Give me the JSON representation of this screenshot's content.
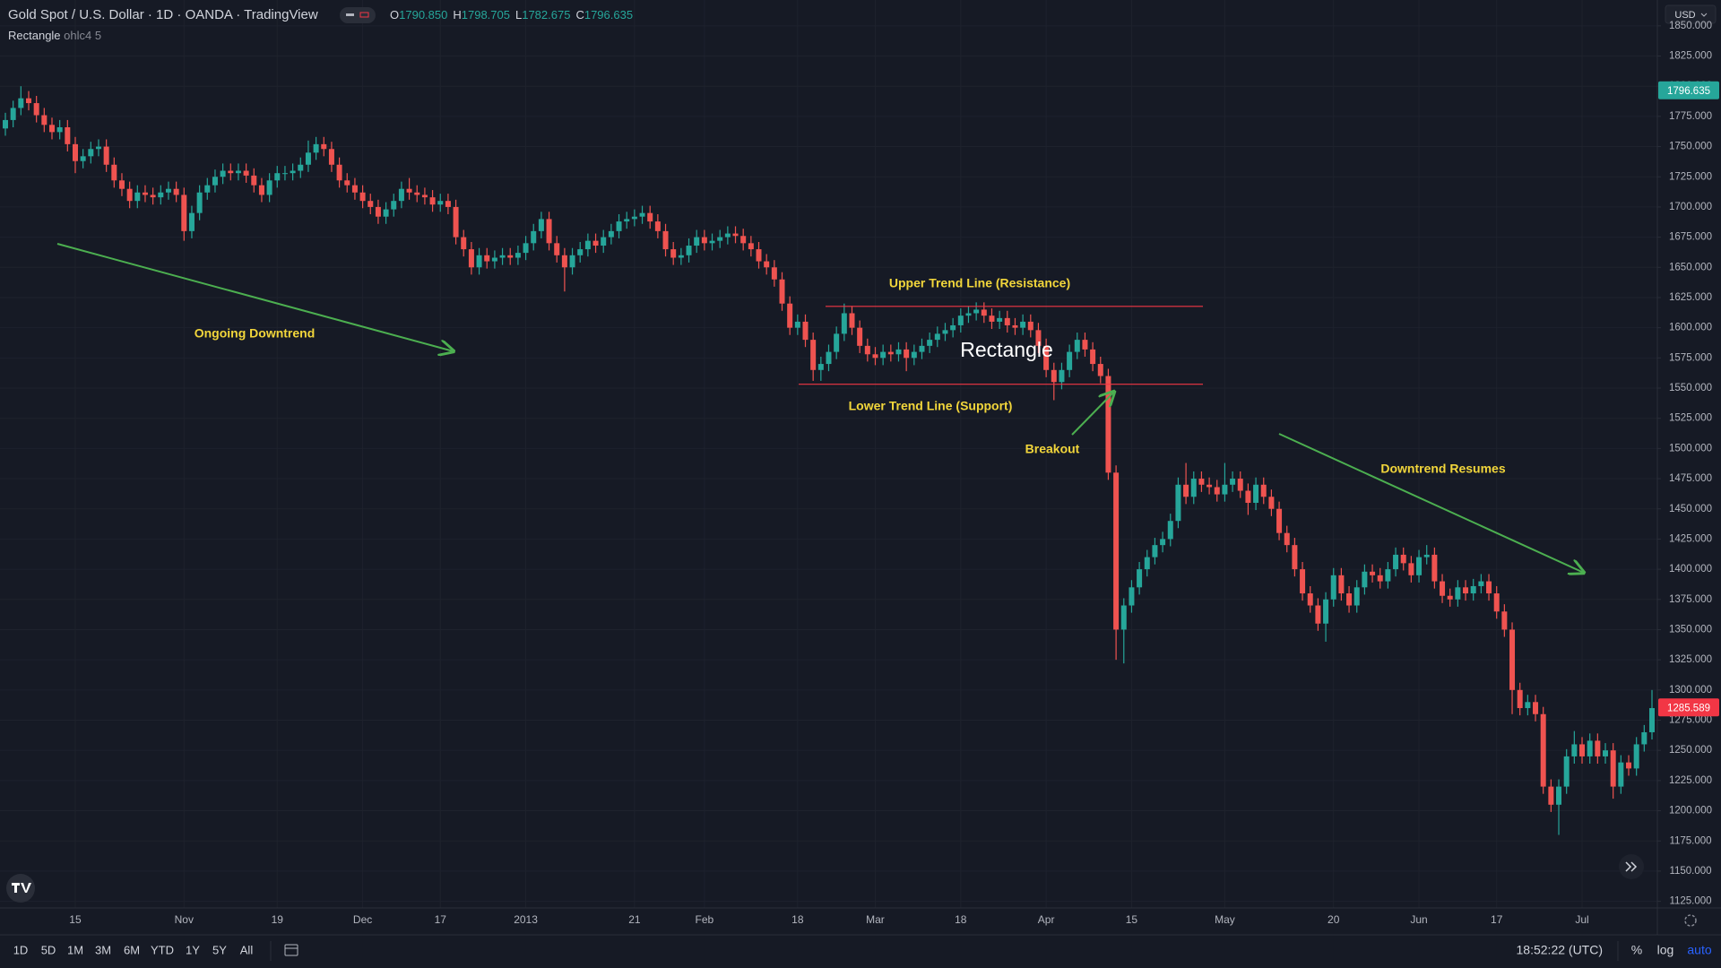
{
  "header": {
    "title": "Gold Spot / U.S. Dollar · 1D · OANDA · TradingView",
    "ohlc": [
      {
        "key": "O",
        "value": "1790.850"
      },
      {
        "key": "H",
        "value": "1798.705"
      },
      {
        "key": "L",
        "value": "1782.675"
      },
      {
        "key": "C",
        "value": "1796.635"
      }
    ],
    "indicator": {
      "name": "Rectangle",
      "params": "ohlc4 5"
    }
  },
  "chart_data": {
    "type": "candlestick",
    "categories": [
      null,
      null,
      null,
      null,
      null,
      null,
      null,
      null,
      null,
      "15",
      null,
      null,
      null,
      null,
      null,
      null,
      null,
      null,
      null,
      null,
      null,
      null,
      null,
      "Nov",
      null,
      null,
      null,
      null,
      null,
      null,
      null,
      null,
      null,
      null,
      null,
      "19",
      null,
      null,
      null,
      null,
      null,
      null,
      null,
      null,
      null,
      null,
      "Dec",
      null,
      null,
      null,
      null,
      null,
      null,
      null,
      null,
      null,
      "17",
      null,
      null,
      null,
      null,
      null,
      null,
      null,
      null,
      null,
      null,
      "2013",
      null,
      null,
      null,
      null,
      null,
      null,
      null,
      null,
      null,
      null,
      null,
      null,
      null,
      "21",
      null,
      null,
      null,
      null,
      null,
      null,
      null,
      null,
      "Feb",
      null,
      null,
      null,
      null,
      null,
      null,
      null,
      null,
      null,
      null,
      null,
      "18",
      null,
      null,
      null,
      null,
      null,
      null,
      null,
      null,
      null,
      "Mar",
      null,
      null,
      null,
      null,
      null,
      null,
      null,
      null,
      null,
      null,
      "18",
      null,
      null,
      null,
      null,
      null,
      null,
      null,
      null,
      null,
      null,
      "Apr",
      null,
      null,
      null,
      null,
      null,
      null,
      null,
      null,
      null,
      null,
      "15",
      null,
      null,
      null,
      null,
      null,
      null,
      null,
      null,
      null,
      null,
      null,
      "May",
      null,
      null,
      null,
      null,
      null,
      null,
      null,
      null,
      null,
      null,
      null,
      null,
      null,
      "20",
      null,
      null,
      null,
      null,
      null,
      null,
      null,
      null,
      null,
      null,
      "Jun",
      null,
      null,
      null,
      null,
      null,
      null,
      null,
      null,
      null,
      "17",
      null,
      null,
      null,
      null,
      null,
      null,
      null,
      null,
      null,
      null,
      "Jul",
      null,
      null,
      null,
      null,
      null,
      null,
      null,
      null,
      null
    ],
    "open": [
      1765,
      1772,
      1782,
      1790,
      1786,
      1776,
      1768,
      1762,
      1766,
      1752,
      1738,
      1742,
      1748,
      1750,
      1735,
      1722,
      1715,
      1705,
      1712,
      1710,
      1708,
      1712,
      1715,
      1710,
      1680,
      1695,
      1712,
      1718,
      1725,
      1730,
      1728,
      1730,
      1726,
      1718,
      1710,
      1722,
      1728,
      1728,
      1730,
      1735,
      1745,
      1752,
      1748,
      1735,
      1722,
      1718,
      1712,
      1705,
      1700,
      1692,
      1698,
      1705,
      1715,
      1712,
      1710,
      1708,
      1702,
      1705,
      1700,
      1675,
      1665,
      1650,
      1660,
      1655,
      1658,
      1660,
      1658,
      1662,
      1670,
      1680,
      1690,
      1670,
      1660,
      1650,
      1660,
      1665,
      1672,
      1668,
      1675,
      1680,
      1688,
      1690,
      1692,
      1695,
      1688,
      1680,
      1665,
      1658,
      1660,
      1668,
      1675,
      1670,
      1672,
      1675,
      1678,
      1676,
      1670,
      1665,
      1655,
      1650,
      1640,
      1620,
      1600,
      1605,
      1590,
      1565,
      1570,
      1580,
      1595,
      1612,
      1600,
      1585,
      1578,
      1575,
      1580,
      1578,
      1582,
      1575,
      1580,
      1585,
      1590,
      1595,
      1598,
      1602,
      1610,
      1612,
      1615,
      1610,
      1605,
      1608,
      1602,
      1600,
      1605,
      1598,
      1585,
      1565,
      1555,
      1565,
      1580,
      1590,
      1582,
      1570,
      1560,
      1480,
      1350,
      1370,
      1385,
      1400,
      1410,
      1420,
      1425,
      1440,
      1470,
      1460,
      1475,
      1470,
      1468,
      1462,
      1470,
      1475,
      1465,
      1455,
      1470,
      1460,
      1450,
      1430,
      1420,
      1400,
      1380,
      1370,
      1355,
      1375,
      1395,
      1380,
      1370,
      1385,
      1398,
      1395,
      1390,
      1400,
      1412,
      1405,
      1395,
      1410,
      1412,
      1390,
      1378,
      1375,
      1385,
      1380,
      1386,
      1390,
      1380,
      1365,
      1350,
      1300,
      1285,
      1290,
      1280,
      1220,
      1205,
      1220,
      1245,
      1255,
      1245,
      1258,
      1245,
      1250,
      1220,
      1240,
      1235,
      1255,
      1265
    ],
    "high": [
      1778,
      1788,
      1800,
      1796,
      1792,
      1782,
      1774,
      1772,
      1772,
      1758,
      1748,
      1754,
      1756,
      1756,
      1741,
      1728,
      1721,
      1718,
      1718,
      1716,
      1718,
      1721,
      1721,
      1716,
      1701,
      1718,
      1724,
      1731,
      1736,
      1736,
      1736,
      1736,
      1732,
      1724,
      1728,
      1734,
      1734,
      1736,
      1741,
      1755,
      1758,
      1758,
      1754,
      1741,
      1728,
      1724,
      1718,
      1711,
      1706,
      1704,
      1711,
      1721,
      1724,
      1718,
      1716,
      1714,
      1711,
      1711,
      1706,
      1681,
      1671,
      1666,
      1666,
      1664,
      1666,
      1666,
      1668,
      1676,
      1686,
      1696,
      1696,
      1676,
      1666,
      1666,
      1671,
      1678,
      1678,
      1681,
      1686,
      1694,
      1696,
      1698,
      1701,
      1701,
      1694,
      1686,
      1671,
      1666,
      1674,
      1681,
      1681,
      1678,
      1681,
      1684,
      1684,
      1682,
      1676,
      1671,
      1661,
      1656,
      1646,
      1626,
      1611,
      1611,
      1596,
      1576,
      1586,
      1601,
      1620,
      1618,
      1606,
      1591,
      1584,
      1586,
      1586,
      1588,
      1588,
      1586,
      1591,
      1596,
      1601,
      1604,
      1608,
      1616,
      1618,
      1621,
      1621,
      1616,
      1614,
      1614,
      1608,
      1611,
      1611,
      1604,
      1591,
      1571,
      1571,
      1586,
      1596,
      1596,
      1588,
      1576,
      1566,
      1486,
      1376,
      1391,
      1406,
      1416,
      1426,
      1431,
      1446,
      1476,
      1488,
      1481,
      1481,
      1476,
      1474,
      1488,
      1481,
      1481,
      1471,
      1476,
      1476,
      1466,
      1456,
      1436,
      1426,
      1406,
      1386,
      1376,
      1381,
      1401,
      1401,
      1386,
      1391,
      1404,
      1404,
      1401,
      1406,
      1418,
      1418,
      1411,
      1416,
      1420,
      1418,
      1396,
      1384,
      1391,
      1391,
      1392,
      1396,
      1396,
      1386,
      1371,
      1356,
      1306,
      1296,
      1296,
      1286,
      1226,
      1226,
      1251,
      1266,
      1261,
      1264,
      1264,
      1256,
      1256,
      1246,
      1246,
      1261,
      1271,
      1300
    ],
    "low": [
      1759,
      1766,
      1776,
      1780,
      1770,
      1762,
      1756,
      1756,
      1746,
      1728,
      1732,
      1736,
      1742,
      1729,
      1716,
      1709,
      1699,
      1699,
      1704,
      1702,
      1702,
      1706,
      1704,
      1672,
      1674,
      1689,
      1706,
      1712,
      1719,
      1722,
      1722,
      1720,
      1712,
      1704,
      1704,
      1716,
      1722,
      1722,
      1724,
      1729,
      1739,
      1742,
      1729,
      1716,
      1712,
      1706,
      1699,
      1694,
      1686,
      1686,
      1692,
      1699,
      1706,
      1704,
      1702,
      1696,
      1696,
      1694,
      1669,
      1659,
      1644,
      1644,
      1649,
      1649,
      1652,
      1652,
      1652,
      1656,
      1664,
      1674,
      1664,
      1654,
      1630,
      1644,
      1654,
      1659,
      1662,
      1662,
      1669,
      1674,
      1682,
      1684,
      1686,
      1682,
      1674,
      1659,
      1652,
      1652,
      1654,
      1662,
      1664,
      1664,
      1666,
      1669,
      1670,
      1664,
      1659,
      1649,
      1644,
      1634,
      1614,
      1594,
      1594,
      1584,
      1556,
      1556,
      1564,
      1574,
      1589,
      1594,
      1579,
      1572,
      1569,
      1569,
      1572,
      1572,
      1564,
      1569,
      1574,
      1579,
      1584,
      1589,
      1592,
      1596,
      1604,
      1606,
      1604,
      1599,
      1599,
      1596,
      1594,
      1594,
      1592,
      1579,
      1559,
      1540,
      1549,
      1559,
      1574,
      1576,
      1564,
      1554,
      1474,
      1325,
      1322,
      1364,
      1379,
      1394,
      1404,
      1414,
      1419,
      1434,
      1454,
      1454,
      1464,
      1462,
      1456,
      1456,
      1464,
      1459,
      1445,
      1449,
      1454,
      1444,
      1424,
      1414,
      1394,
      1374,
      1364,
      1349,
      1340,
      1369,
      1374,
      1364,
      1364,
      1379,
      1389,
      1384,
      1384,
      1394,
      1399,
      1389,
      1389,
      1404,
      1384,
      1372,
      1369,
      1369,
      1374,
      1374,
      1380,
      1374,
      1359,
      1344,
      1280,
      1279,
      1279,
      1274,
      1214,
      1199,
      1180,
      1214,
      1239,
      1239,
      1239,
      1239,
      1239,
      1210,
      1214,
      1229,
      1229,
      1249,
      1259
    ],
    "close": [
      1772,
      1782,
      1790,
      1786,
      1776,
      1768,
      1762,
      1766,
      1752,
      1738,
      1742,
      1748,
      1750,
      1735,
      1722,
      1715,
      1705,
      1712,
      1710,
      1708,
      1712,
      1715,
      1710,
      1680,
      1695,
      1712,
      1718,
      1725,
      1730,
      1728,
      1730,
      1726,
      1718,
      1710,
      1722,
      1728,
      1728,
      1730,
      1735,
      1745,
      1752,
      1748,
      1735,
      1722,
      1718,
      1712,
      1705,
      1700,
      1692,
      1698,
      1705,
      1715,
      1712,
      1710,
      1708,
      1702,
      1705,
      1700,
      1675,
      1665,
      1650,
      1660,
      1655,
      1658,
      1660,
      1658,
      1662,
      1670,
      1680,
      1690,
      1670,
      1660,
      1650,
      1660,
      1665,
      1672,
      1668,
      1675,
      1680,
      1688,
      1690,
      1692,
      1695,
      1688,
      1680,
      1665,
      1658,
      1660,
      1668,
      1675,
      1670,
      1672,
      1675,
      1678,
      1676,
      1670,
      1665,
      1655,
      1650,
      1640,
      1620,
      1600,
      1605,
      1590,
      1565,
      1570,
      1580,
      1595,
      1612,
      1600,
      1585,
      1578,
      1575,
      1580,
      1578,
      1582,
      1575,
      1580,
      1585,
      1590,
      1595,
      1598,
      1602,
      1610,
      1612,
      1615,
      1610,
      1605,
      1608,
      1602,
      1600,
      1605,
      1598,
      1585,
      1565,
      1555,
      1565,
      1580,
      1590,
      1582,
      1570,
      1560,
      1480,
      1350,
      1370,
      1385,
      1400,
      1410,
      1420,
      1425,
      1440,
      1470,
      1460,
      1475,
      1470,
      1468,
      1462,
      1470,
      1475,
      1465,
      1455,
      1470,
      1460,
      1450,
      1430,
      1420,
      1400,
      1380,
      1370,
      1355,
      1375,
      1395,
      1380,
      1370,
      1385,
      1398,
      1395,
      1390,
      1400,
      1412,
      1405,
      1395,
      1410,
      1412,
      1390,
      1378,
      1375,
      1385,
      1380,
      1386,
      1390,
      1380,
      1365,
      1350,
      1300,
      1285,
      1290,
      1280,
      1220,
      1205,
      1220,
      1245,
      1255,
      1245,
      1258,
      1245,
      1250,
      1220,
      1240,
      1235,
      1255,
      1265,
      1285
    ],
    "up_color": "#26a69a",
    "down_color": "#ef5350",
    "ylim": [
      1119.5,
      1871.4
    ],
    "yticks": [
      {
        "value": 1125,
        "label": "1125.000"
      },
      {
        "value": 1150,
        "label": "1150.000"
      },
      {
        "value": 1175,
        "label": "1175.000"
      },
      {
        "value": 1200,
        "label": "1200.000"
      },
      {
        "value": 1225,
        "label": "1225.000"
      },
      {
        "value": 1250,
        "label": "1250.000"
      },
      {
        "value": 1275,
        "label": "1275.000"
      },
      {
        "value": 1300,
        "label": "1300.000"
      },
      {
        "value": 1325,
        "label": "1325.000"
      },
      {
        "value": 1350,
        "label": "1350.000"
      },
      {
        "value": 1375,
        "label": "1375.000"
      },
      {
        "value": 1400,
        "label": "1400.000"
      },
      {
        "value": 1425,
        "label": "1425.000"
      },
      {
        "value": 1450,
        "label": "1450.000"
      },
      {
        "value": 1475,
        "label": "1475.000"
      },
      {
        "value": 1500,
        "label": "1500.000"
      },
      {
        "value": 1525,
        "label": "1525.000"
      },
      {
        "value": 1550,
        "label": "1550.000"
      },
      {
        "value": 1575,
        "label": "1575.000"
      },
      {
        "value": 1600,
        "label": "1600.000"
      },
      {
        "value": 1625,
        "label": "1625.000"
      },
      {
        "value": 1650,
        "label": "1650.000"
      },
      {
        "value": 1675,
        "label": "1675.000"
      },
      {
        "value": 1700,
        "label": "1700.000"
      },
      {
        "value": 1725,
        "label": "1725.000"
      },
      {
        "value": 1750,
        "label": "1750.000"
      },
      {
        "value": 1775,
        "label": "1775.000"
      },
      {
        "value": 1800,
        "label": "1800.000"
      },
      {
        "value": 1825,
        "label": "1825.000"
      },
      {
        "value": 1850,
        "label": "1850.000"
      }
    ],
    "grid": true,
    "price_labels": [
      {
        "value": 1796.635,
        "color": "#26a69a"
      },
      {
        "value": 1285.589,
        "color": "#f23645"
      }
    ],
    "levels": [
      {
        "value": 1617.7,
        "color": "#f23645"
      },
      {
        "value": 1553.2,
        "color": "#f23645"
      }
    ],
    "annotations": [
      {
        "text": "Upper Trend Line (Resistance)",
        "color": "#f2d63b"
      },
      {
        "text": "Rectangle",
        "color": "#ffffff"
      },
      {
        "text": "Lower Trend Line (Support)",
        "color": "#f2d63b"
      },
      {
        "text": "Breakout",
        "color": "#f2d63b"
      },
      {
        "text": "Ongoing Downtrend",
        "color": "#f2d63b"
      },
      {
        "text": "Downtrend Resumes",
        "color": "#f2d63b"
      }
    ],
    "currency": "USD"
  },
  "toolbar": {
    "ranges": [
      "1D",
      "5D",
      "1M",
      "3M",
      "6M",
      "YTD",
      "1Y",
      "5Y",
      "All"
    ],
    "time": "18:52:22 (UTC)",
    "options": [
      "%",
      "log",
      "auto"
    ]
  }
}
